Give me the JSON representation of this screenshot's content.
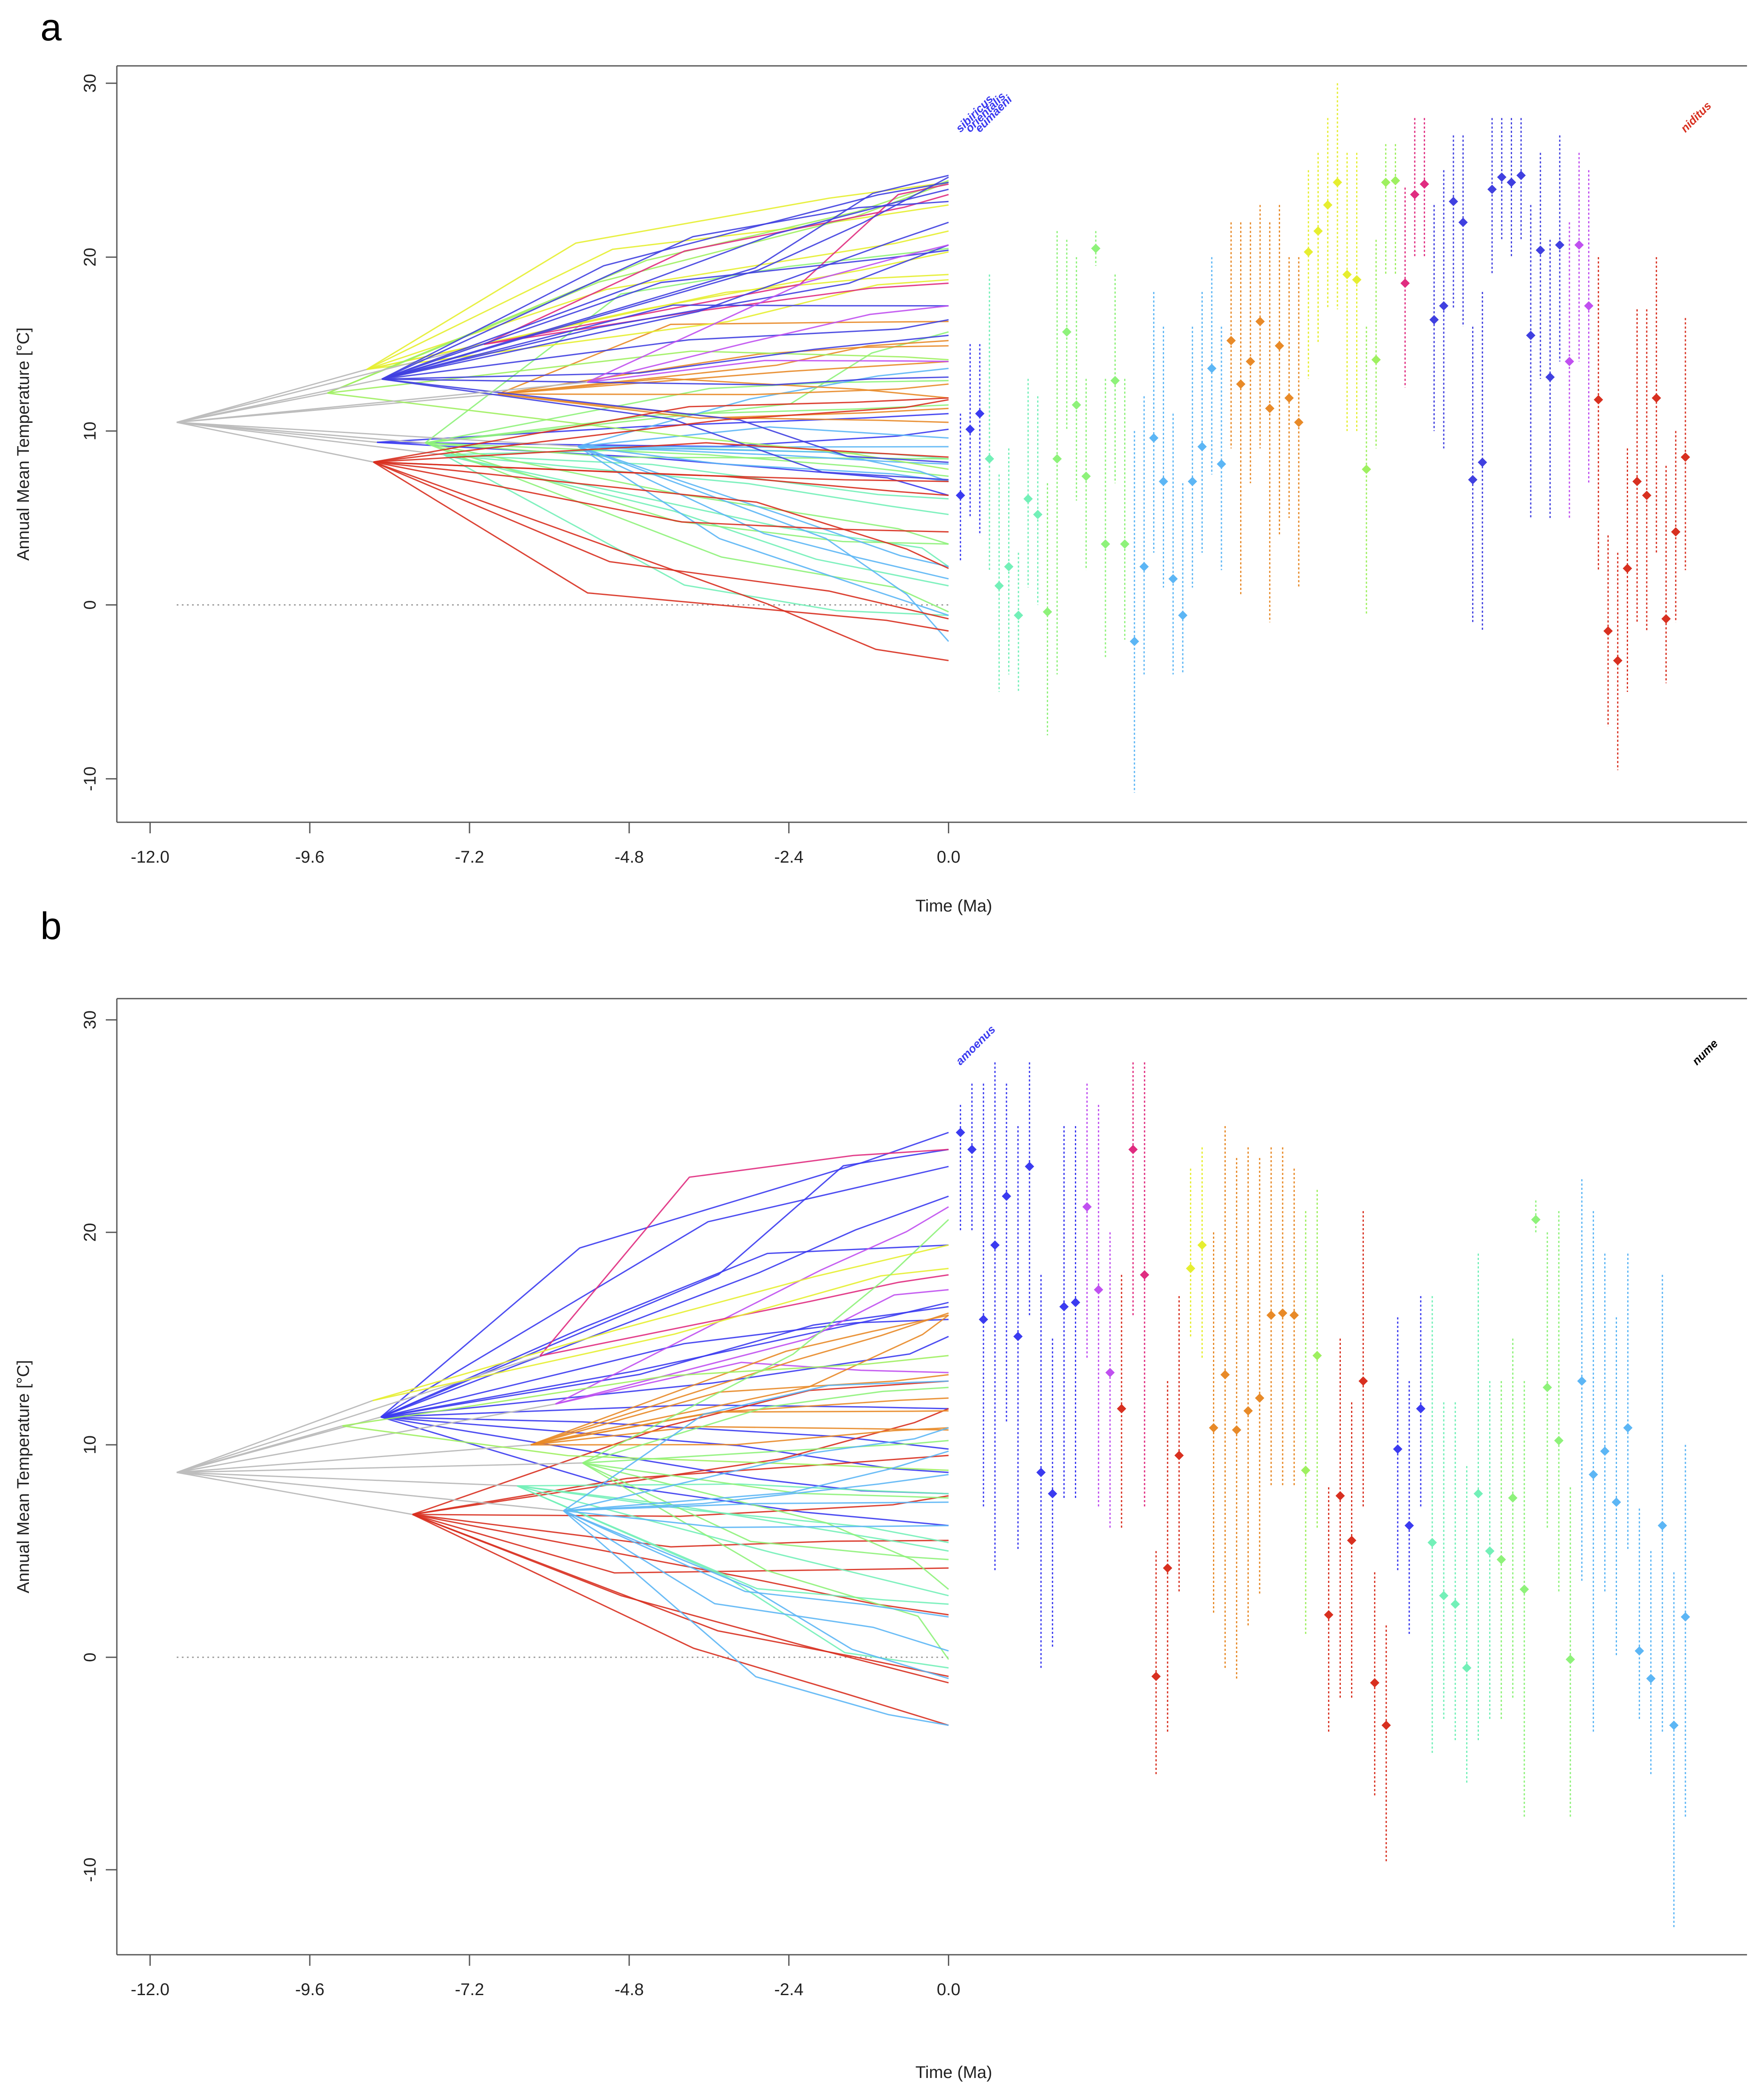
{
  "chart_data": [
    {
      "type": "line",
      "panel_label": "a",
      "xlabel": "Time (Ma)",
      "ylabel": "Annual Mean Temperature [°C]",
      "xlim": [
        -12.5,
        12.0
      ],
      "ylim": [
        -12.5,
        31.0
      ],
      "xticks": [
        "-12.0",
        "-9.6",
        "-7.2",
        "-4.8",
        "-2.4",
        "0.0"
      ],
      "xtick_values": [
        -12.0,
        -9.6,
        -7.2,
        -4.8,
        -2.4,
        0.0
      ],
      "yticks": [
        "-10",
        "0",
        "10",
        "20",
        "30"
      ],
      "ytick_values": [
        -10,
        0,
        10,
        20,
        30
      ],
      "grid": false,
      "reference_line": {
        "y": 0,
        "x_from": -11.6,
        "x_to": 0.0
      },
      "root": {
        "time": -11.6,
        "value": 10.5
      },
      "tip_values": [
        6.3,
        10.1,
        11.0,
        8.4,
        1.1,
        2.2,
        -0.6,
        6.1,
        5.2,
        -0.4,
        8.4,
        15.7,
        11.5,
        7.4,
        20.5,
        3.5,
        12.9,
        3.5,
        -2.1,
        2.2,
        9.6,
        7.1,
        1.5,
        -0.6,
        7.1,
        9.1,
        13.6,
        8.1,
        15.2,
        12.7,
        14.0,
        16.3,
        11.3,
        14.9,
        11.9,
        10.5,
        20.3,
        21.5,
        23.0,
        24.3,
        19.0,
        18.7,
        7.8,
        14.1,
        24.3,
        24.4,
        18.5,
        23.6,
        24.2,
        16.4,
        17.2,
        23.2,
        22.0,
        7.2,
        8.2,
        23.9,
        24.6,
        24.3,
        24.7,
        15.5,
        20.4,
        13.1,
        20.7,
        14.0,
        20.7,
        17.2,
        11.8,
        -1.5,
        -3.2,
        2.1,
        7.1,
        6.3,
        11.9,
        -0.8,
        4.2,
        8.5
      ],
      "tip_ranges": [
        [
          2.5,
          11.0
        ],
        [
          5.0,
          15.0
        ],
        [
          4.0,
          15.0
        ],
        [
          2.0,
          19.0
        ],
        [
          -5.0,
          7.5
        ],
        [
          -4.0,
          9.0
        ],
        [
          -5.0,
          3.0
        ],
        [
          1.0,
          13.0
        ],
        [
          0.0,
          12.0
        ],
        [
          -7.5,
          7.0
        ],
        [
          -4.0,
          21.5
        ],
        [
          10.0,
          21.0
        ],
        [
          6.0,
          20.0
        ],
        [
          2.0,
          13.0
        ],
        [
          19.5,
          21.5
        ],
        [
          -3.0,
          13.0
        ],
        [
          7.0,
          19.0
        ],
        [
          -2.0,
          13.0
        ],
        [
          -10.8,
          10.0
        ],
        [
          -4.0,
          12.0
        ],
        [
          3.0,
          18.0
        ],
        [
          1.0,
          16.0
        ],
        [
          -4.0,
          11.0
        ],
        [
          -4.0,
          7.0
        ],
        [
          1.0,
          16.0
        ],
        [
          3.0,
          18.0
        ],
        [
          7.5,
          20.0
        ],
        [
          2.0,
          16.0
        ],
        [
          9.0,
          22.0
        ],
        [
          0.5,
          22.0
        ],
        [
          7.0,
          22.0
        ],
        [
          9.0,
          23.0
        ],
        [
          -1.0,
          22.0
        ],
        [
          4.0,
          23.0
        ],
        [
          5.0,
          20.0
        ],
        [
          1.0,
          20.0
        ],
        [
          13.0,
          25.0
        ],
        [
          15.0,
          26.0
        ],
        [
          17.0,
          28.0
        ],
        [
          17.0,
          30.0
        ],
        [
          10.0,
          26.0
        ],
        [
          10.0,
          26.0
        ],
        [
          -0.5,
          16.0
        ],
        [
          9.0,
          21.0
        ],
        [
          19.0,
          26.5
        ],
        [
          19.0,
          26.5
        ],
        [
          12.5,
          24.0
        ],
        [
          20.0,
          28.0
        ],
        [
          20.0,
          28.0
        ],
        [
          10.0,
          23.0
        ],
        [
          9.0,
          25.0
        ],
        [
          17.0,
          27.0
        ],
        [
          16.0,
          27.0
        ],
        [
          -1.0,
          16.0
        ],
        [
          -1.5,
          18.0
        ],
        [
          19.0,
          28.0
        ],
        [
          21.0,
          28.0
        ],
        [
          20.0,
          28.0
        ],
        [
          21.0,
          28.0
        ],
        [
          5.0,
          23.0
        ],
        [
          13.0,
          26.0
        ],
        [
          5.0,
          21.0
        ],
        [
          14.0,
          27.0
        ],
        [
          5.0,
          22.0
        ],
        [
          14.0,
          26.0
        ],
        [
          7.0,
          25.0
        ],
        [
          2.0,
          20.0
        ],
        [
          -7.0,
          4.0
        ],
        [
          -9.5,
          3.0
        ],
        [
          -5.0,
          9.0
        ],
        [
          -1.0,
          17.0
        ],
        [
          -1.5,
          17.0
        ],
        [
          3.0,
          20.0
        ],
        [
          -4.5,
          8.0
        ],
        [
          -1.0,
          10.0
        ],
        [
          2.0,
          16.5
        ]
      ],
      "tip_colors": [
        "#3b3bf0",
        "#3b3bf0",
        "#3b3bf0",
        "#73f0b8",
        "#73f0b8",
        "#73f0b8",
        "#73f0b8",
        "#73f0b8",
        "#73f0b8",
        "#8ef27a",
        "#8ef27a",
        "#8ef27a",
        "#8ef27a",
        "#8ef27a",
        "#8ef27a",
        "#8ef27a",
        "#8ef27a",
        "#8ef27a",
        "#5cb6f5",
        "#5cb6f5",
        "#5cb6f5",
        "#5cb6f5",
        "#5cb6f5",
        "#5cb6f5",
        "#5cb6f5",
        "#5cb6f5",
        "#5cb6f5",
        "#5cb6f5",
        "#e88a28",
        "#e88a28",
        "#e88a28",
        "#e88a28",
        "#e88a28",
        "#e88a28",
        "#e88a28",
        "#e88a28",
        "#e6ee30",
        "#e6ee30",
        "#e6ee30",
        "#e6ee30",
        "#e6ee30",
        "#e6ee30",
        "#9ef060",
        "#9ef060",
        "#9ef060",
        "#9ef060",
        "#e02c80",
        "#e02c80",
        "#e02c80",
        "#4040e0",
        "#4040e0",
        "#4040e0",
        "#4040e0",
        "#4040e0",
        "#4040e0",
        "#4040e0",
        "#4040e0",
        "#4040e0",
        "#4040e0",
        "#4040e0",
        "#4040e0",
        "#4040e0",
        "#4040e0",
        "#c050f0",
        "#c050f0",
        "#c050f0",
        "#d83020",
        "#d83020",
        "#d83020",
        "#d83020",
        "#d83020",
        "#d83020",
        "#d83020",
        "#d83020",
        "#d83020",
        "#d83020"
      ],
      "species_labels": [
        "sibiricus",
        "orientalis",
        "eumaeni",
        "",
        "",
        "",
        "",
        "",
        "",
        "",
        "",
        "",
        "",
        "",
        "",
        "",
        "",
        "",
        "",
        "",
        "",
        "",
        "",
        "",
        "",
        "",
        "",
        "",
        "",
        "",
        "",
        "",
        "",
        "",
        "",
        "",
        "",
        "",
        "",
        "",
        "",
        "",
        "",
        "",
        "",
        "",
        "",
        "",
        "",
        "",
        "",
        "",
        "",
        "",
        "",
        "",
        "",
        "",
        "",
        "",
        "",
        "",
        "",
        "",
        "",
        "",
        "",
        "",
        "",
        "",
        "",
        "",
        "",
        "",
        "",
        "niditus"
      ]
    },
    {
      "type": "line",
      "panel_label": "b",
      "xlabel": "Time (Ma)",
      "ylabel": "Annual Mean Temperature [°C]",
      "xlim": [
        -12.5,
        12.0
      ],
      "ylim": [
        -14.0,
        31.0
      ],
      "xticks": [
        "-12.0",
        "-9.6",
        "-7.2",
        "-4.8",
        "-2.4",
        "0.0"
      ],
      "xtick_values": [
        -12.0,
        -9.6,
        -7.2,
        -4.8,
        -2.4,
        0.0
      ],
      "yticks": [
        "-10",
        "0",
        "10",
        "20",
        "30"
      ],
      "ytick_values": [
        -10,
        0,
        10,
        20,
        30
      ],
      "grid": false,
      "reference_line": {
        "y": 0,
        "x_from": -11.6,
        "x_to": 0.0
      },
      "root": {
        "time": -11.6,
        "value": 8.7
      },
      "tip_values": [
        24.7,
        23.9,
        15.9,
        19.4,
        21.7,
        15.1,
        23.1,
        8.7,
        7.7,
        16.5,
        16.7,
        21.2,
        17.3,
        13.4,
        11.7,
        23.9,
        18.0,
        -0.9,
        4.2,
        9.5,
        18.3,
        19.4,
        10.8,
        13.3,
        10.7,
        11.6,
        12.2,
        16.1,
        16.2,
        16.1,
        8.8,
        14.2,
        2.0,
        7.6,
        5.5,
        13.0,
        -1.2,
        -3.2,
        9.8,
        6.2,
        11.7,
        5.4,
        2.9,
        2.5,
        -0.5,
        7.7,
        5.0,
        4.6,
        7.5,
        3.2,
        20.6,
        12.7,
        10.2,
        -0.1,
        13.0,
        8.6,
        9.7,
        7.3,
        10.8,
        0.3,
        -1.0,
        6.2,
        -3.2,
        1.9
      ],
      "tip_ranges": [
        [
          20.0,
          26.0
        ],
        [
          20.0,
          27.0
        ],
        [
          7.0,
          27.0
        ],
        [
          4.0,
          28.0
        ],
        [
          11.0,
          27.0
        ],
        [
          5.0,
          25.0
        ],
        [
          16.0,
          28.0
        ],
        [
          -0.5,
          18.0
        ],
        [
          0.5,
          15.0
        ],
        [
          7.5,
          25.0
        ],
        [
          7.5,
          25.0
        ],
        [
          14.0,
          27.0
        ],
        [
          7.0,
          26.0
        ],
        [
          6.0,
          20.0
        ],
        [
          6.0,
          18.0
        ],
        [
          16.0,
          28.0
        ],
        [
          7.0,
          28.0
        ],
        [
          -5.5,
          5.0
        ],
        [
          -3.5,
          13.0
        ],
        [
          3.0,
          17.0
        ],
        [
          15.0,
          23.0
        ],
        [
          14.0,
          24.0
        ],
        [
          2.0,
          20.0
        ],
        [
          -0.5,
          25.0
        ],
        [
          -1.0,
          23.5
        ],
        [
          1.5,
          24.0
        ],
        [
          3.0,
          23.5
        ],
        [
          8.0,
          24.0
        ],
        [
          8.0,
          24.0
        ],
        [
          8.0,
          23.0
        ],
        [
          1.0,
          21.0
        ],
        [
          6.0,
          22.0
        ],
        [
          -3.5,
          8.0
        ],
        [
          -2.0,
          15.0
        ],
        [
          -2.0,
          12.0
        ],
        [
          7.0,
          21.0
        ],
        [
          -6.5,
          4.0
        ],
        [
          -9.7,
          1.5
        ],
        [
          4.0,
          16.0
        ],
        [
          1.0,
          13.0
        ],
        [
          7.0,
          17.0
        ],
        [
          -4.5,
          17.0
        ],
        [
          -3.0,
          12.0
        ],
        [
          -4.0,
          12.0
        ],
        [
          -6.0,
          9.0
        ],
        [
          -4.0,
          19.0
        ],
        [
          -3.0,
          13.0
        ],
        [
          -3.0,
          13.0
        ],
        [
          -2.0,
          15.0
        ],
        [
          -7.5,
          13.0
        ],
        [
          20.0,
          21.5
        ],
        [
          6.0,
          20.0
        ],
        [
          3.0,
          21.0
        ],
        [
          -7.5,
          8.0
        ],
        [
          3.5,
          22.5
        ],
        [
          -3.5,
          21.0
        ],
        [
          3.0,
          19.0
        ],
        [
          0.0,
          16.0
        ],
        [
          5.0,
          19.0
        ],
        [
          -3.0,
          7.0
        ],
        [
          -5.5,
          5.0
        ],
        [
          -3.5,
          18.0
        ],
        [
          -12.7,
          4.0
        ],
        [
          -7.5,
          10.0
        ]
      ],
      "tip_colors": [
        "#3b3bf0",
        "#3b3bf0",
        "#3b3bf0",
        "#3b3bf0",
        "#3b3bf0",
        "#3b3bf0",
        "#3b3bf0",
        "#3b3bf0",
        "#3b3bf0",
        "#3b3bf0",
        "#3b3bf0",
        "#c050f0",
        "#c050f0",
        "#c050f0",
        "#d83020",
        "#e02c80",
        "#e02c80",
        "#d83020",
        "#d83020",
        "#d83020",
        "#e6ee30",
        "#e6ee30",
        "#e88a28",
        "#e88a28",
        "#e88a28",
        "#e88a28",
        "#e88a28",
        "#e88a28",
        "#e88a28",
        "#e88a28",
        "#9ef060",
        "#9ef060",
        "#d83020",
        "#d83020",
        "#d83020",
        "#d83020",
        "#d83020",
        "#d83020",
        "#3b3bf0",
        "#3b3bf0",
        "#3b3bf0",
        "#73f0b8",
        "#73f0b8",
        "#73f0b8",
        "#73f0b8",
        "#73f0b8",
        "#73f0b8",
        "#8ef27a",
        "#8ef27a",
        "#8ef27a",
        "#8ef27a",
        "#8ef27a",
        "#8ef27a",
        "#8ef27a",
        "#5cb6f5",
        "#5cb6f5",
        "#5cb6f5",
        "#5cb6f5",
        "#5cb6f5",
        "#5cb6f5",
        "#5cb6f5",
        "#5cb6f5",
        "#5cb6f5",
        "#5cb6f5"
      ],
      "species_labels": [
        "amoenus",
        "",
        "",
        "",
        "",
        "",
        "",
        "",
        "",
        "",
        "",
        "",
        "",
        "",
        "",
        "",
        "",
        "",
        "",
        "",
        "",
        "",
        "",
        "",
        "",
        "",
        "",
        "",
        "",
        "",
        "",
        "",
        "",
        "",
        "",
        "",
        "",
        "",
        "",
        "",
        "",
        "",
        "",
        "",
        "",
        "",
        "",
        "",
        "",
        "",
        "",
        "",
        "",
        "",
        "",
        "",
        "",
        "",
        "",
        "",
        "",
        "",
        "",
        "",
        "nume"
      ]
    }
  ]
}
